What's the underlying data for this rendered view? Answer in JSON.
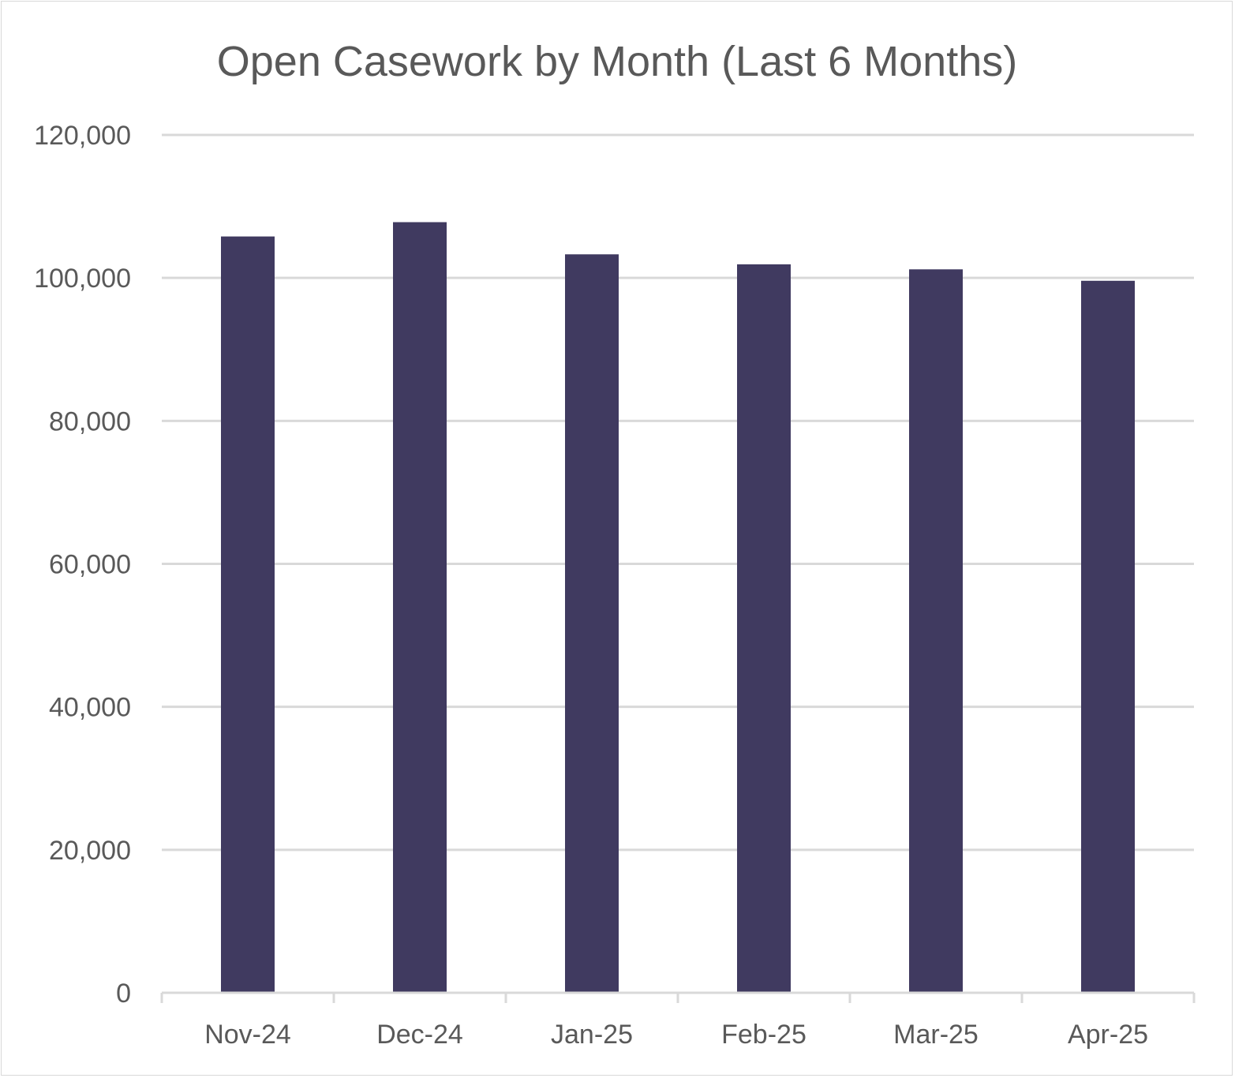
{
  "chart_data": {
    "type": "bar",
    "title": "Open Casework by Month (Last 6 Months)",
    "xlabel": "",
    "ylabel": "",
    "categories": [
      "Nov-24",
      "Dec-24",
      "Jan-25",
      "Feb-25",
      "Mar-25",
      "Apr-25"
    ],
    "values": [
      105800,
      107800,
      103300,
      101900,
      101200,
      99600
    ],
    "ylim": [
      0,
      120000
    ],
    "yticks": [
      0,
      20000,
      40000,
      60000,
      80000,
      100000,
      120000
    ],
    "ytick_labels": [
      "0",
      "20,000",
      "40,000",
      "60,000",
      "80,000",
      "100,000",
      "120,000"
    ],
    "grid": true,
    "legend": "none",
    "bar_color": "#403a60",
    "grid_color": "#d9d9d9",
    "text_color": "#595959"
  }
}
